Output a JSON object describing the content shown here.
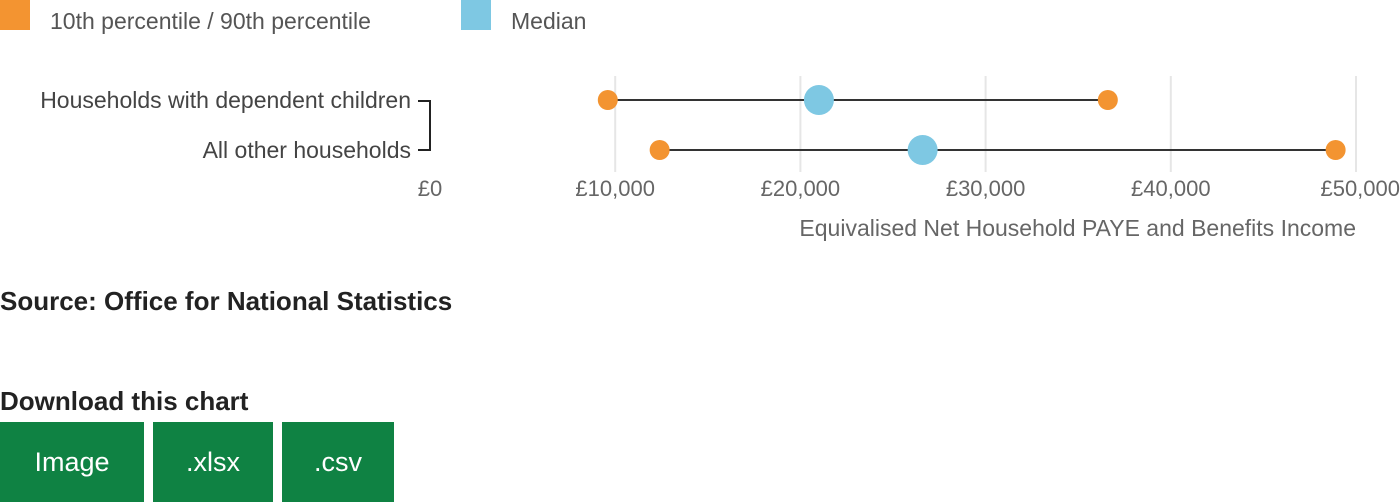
{
  "chart_data": {
    "type": "dot-range",
    "title": "",
    "xlabel": "Equivalised Net Household PAYE and Benefits Income",
    "ylabel": "",
    "xlim": [
      0,
      50000
    ],
    "x_ticks": [
      "£0",
      "£10,000",
      "£20,000",
      "£30,000",
      "£40,000",
      "£50,000"
    ],
    "x_tick_values": [
      0,
      10000,
      20000,
      30000,
      40000,
      50000
    ],
    "grid": "vertical",
    "legend_position": "top-left",
    "legend": [
      {
        "label": "10th percentile / 90th percentile",
        "color": "#f39431"
      },
      {
        "label": "Median",
        "color": "#7ec8e3"
      }
    ],
    "categories": [
      "Households with dependent children",
      "All other households"
    ],
    "series": [
      {
        "name": "10th percentile",
        "values": [
          9600,
          12400
        ]
      },
      {
        "name": "Median",
        "values": [
          21000,
          26600
        ]
      },
      {
        "name": "90th percentile",
        "values": [
          36600,
          48900
        ]
      }
    ]
  },
  "source": "Source: Office for National Statistics",
  "download": {
    "title": "Download this chart",
    "buttons": [
      "Image",
      ".xlsx",
      ".csv"
    ],
    "button_color": "#0f8243"
  }
}
